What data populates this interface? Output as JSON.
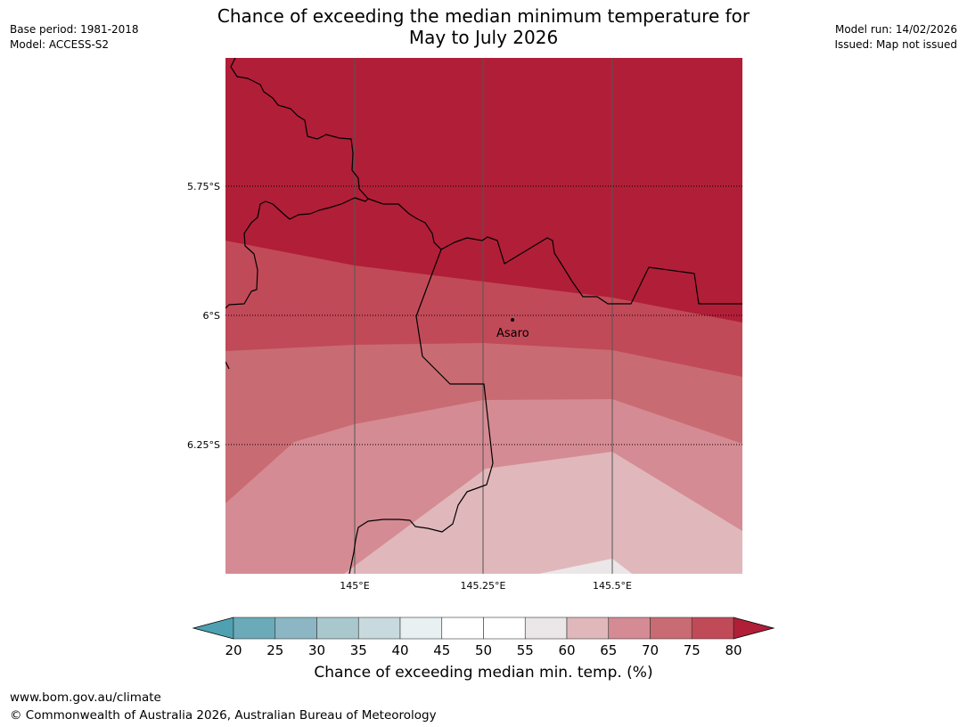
{
  "header": {
    "base_period": "Base period: 1981-2018",
    "model": "Model: ACCESS-S2",
    "model_run": "Model run: 14/02/2026",
    "issued": "Issued: Map not issued",
    "title_line1": "Chance of exceeding the median minimum temperature for",
    "title_line2": "May to July 2026"
  },
  "map": {
    "lat_labels": [
      "5.75°S",
      "6°S",
      "6.25°S"
    ],
    "lon_labels": [
      "145°E",
      "145.25°E",
      "145.5°E"
    ],
    "place": {
      "name": "Asaro"
    }
  },
  "colorbar": {
    "ticks": [
      "20",
      "25",
      "30",
      "35",
      "40",
      "45",
      "50",
      "55",
      "60",
      "65",
      "70",
      "75",
      "80"
    ],
    "colors": [
      "#6aaab9",
      "#8cb6c4",
      "#a9c8cd",
      "#c8dadd",
      "#e9f0f1",
      "#ffffff",
      "#ffffff",
      "#ebe7e8",
      "#e0b8bc",
      "#d58b93",
      "#c96b73",
      "#c14a58"
    ],
    "low_color": "#4fa1b1",
    "high_color": "#b11e38",
    "label": "Chance of exceeding median min. temp. (%)"
  },
  "footer": {
    "url": "www.bom.gov.au/climate",
    "copyright": "© Commonwealth of Australia 2026, Australian Bureau of Meteorology"
  }
}
